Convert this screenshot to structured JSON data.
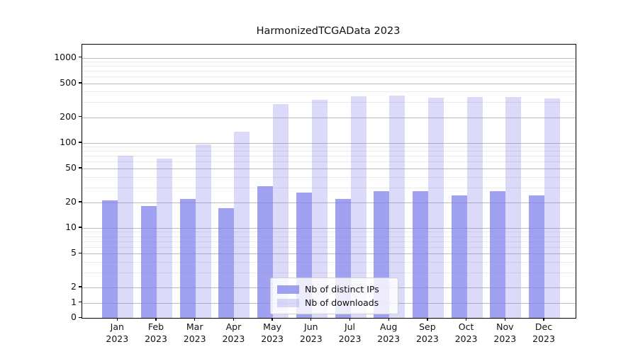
{
  "title": "HarmonizedTCGAData 2023",
  "chart_data": {
    "type": "bar",
    "title": "HarmonizedTCGAData 2023",
    "categories": [
      "Jan 2023",
      "Feb 2023",
      "Mar 2023",
      "Apr 2023",
      "May 2023",
      "Jun 2023",
      "Jul 2023",
      "Aug 2023",
      "Sep 2023",
      "Oct 2023",
      "Nov 2023",
      "Dec 2023"
    ],
    "x_tick_lines": [
      [
        "Jan",
        "2023"
      ],
      [
        "Feb",
        "2023"
      ],
      [
        "Mar",
        "2023"
      ],
      [
        "Apr",
        "2023"
      ],
      [
        "May",
        "2023"
      ],
      [
        "Jun",
        "2023"
      ],
      [
        "Jul",
        "2023"
      ],
      [
        "Aug",
        "2023"
      ],
      [
        "Sep",
        "2023"
      ],
      [
        "Oct",
        "2023"
      ],
      [
        "Nov",
        "2023"
      ],
      [
        "Dec",
        "2023"
      ]
    ],
    "series": [
      {
        "name": "Nb of distinct IPs",
        "color": "rgba(125,125,235,0.72)",
        "values": [
          21,
          18,
          22,
          17,
          31,
          26,
          22,
          27,
          27,
          24,
          27,
          24
        ]
      },
      {
        "name": "Nb of downloads",
        "color": "rgba(125,125,235,0.28)",
        "values": [
          70,
          65,
          96,
          134,
          285,
          320,
          350,
          357,
          336,
          347,
          347,
          332
        ]
      }
    ],
    "y_scale": "symlog",
    "y_ticks": [
      0,
      1,
      2,
      5,
      10,
      20,
      50,
      100,
      200,
      500,
      1000
    ],
    "y_minor_gridlines": [
      3,
      4,
      6,
      7,
      8,
      9,
      30,
      40,
      60,
      70,
      80,
      90,
      300,
      400,
      600,
      700,
      800,
      900
    ],
    "ylim": [
      0,
      1425
    ],
    "xlabel": "",
    "ylabel": "",
    "grid": "on",
    "legend_position": "lower center"
  },
  "colors": {
    "major_grid": "#bcbcbc",
    "minor_grid": "#ebebeb",
    "axis": "#000000",
    "background": "#ffffff"
  }
}
